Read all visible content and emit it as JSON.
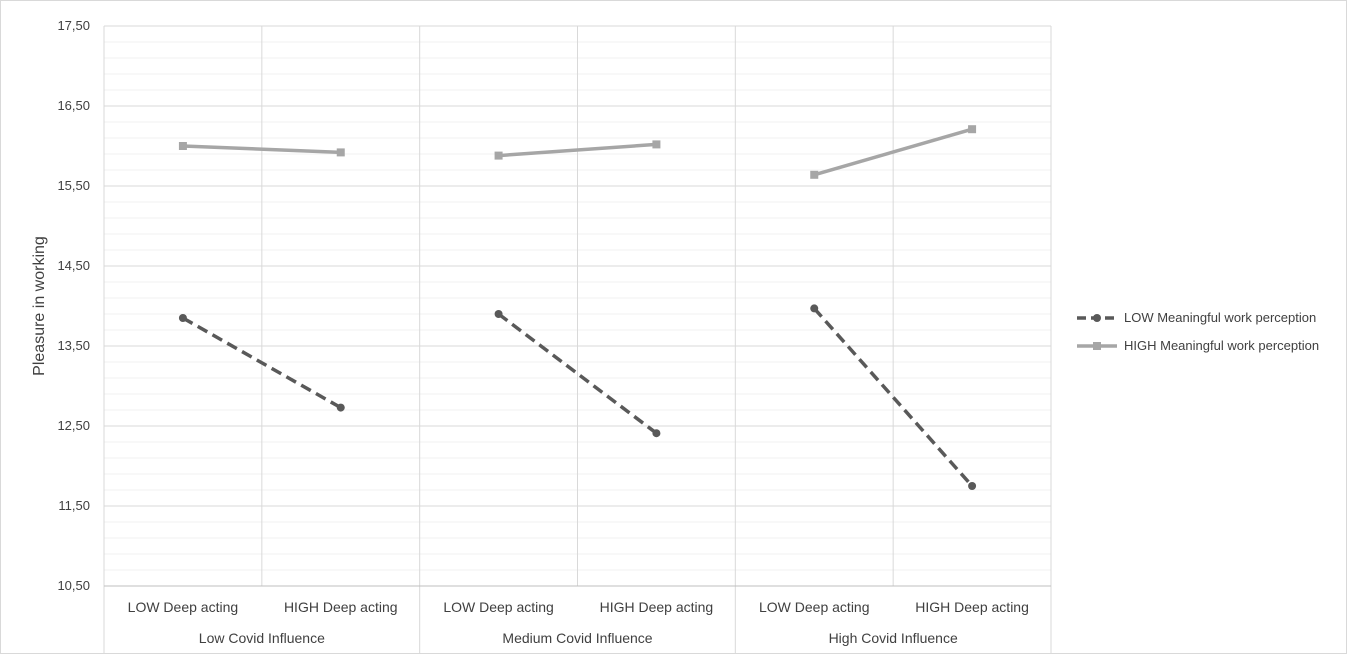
{
  "chart_data": {
    "type": "line",
    "title": "",
    "ylabel": "Pleasure in working",
    "xlabel": "",
    "ylim": [
      10.5,
      17.5
    ],
    "y_ticks": [
      "10,50",
      "11,50",
      "12,50",
      "13,50",
      "14,50",
      "15,50",
      "16,50",
      "17,50"
    ],
    "y_tick_values": [
      10.5,
      11.5,
      12.5,
      13.5,
      14.5,
      15.5,
      16.5,
      17.5
    ],
    "grid": true,
    "legend_position": "right",
    "groups": [
      {
        "label": "Low Covid Influence",
        "categories": [
          "LOW Deep acting",
          "HIGH Deep acting"
        ]
      },
      {
        "label": "Medium Covid Influence",
        "categories": [
          "LOW Deep acting",
          "HIGH Deep acting"
        ]
      },
      {
        "label": "High Covid Influence",
        "categories": [
          "LOW Deep acting",
          "HIGH Deep acting"
        ]
      }
    ],
    "series": [
      {
        "name": "LOW Meaningful work perception",
        "style": "dashed",
        "marker": "circle",
        "color": "#595959",
        "values": [
          [
            13.85,
            12.73
          ],
          [
            13.9,
            12.41
          ],
          [
            13.97,
            11.75
          ]
        ]
      },
      {
        "name": "HIGH Meaningful work perception",
        "style": "solid",
        "marker": "square",
        "color": "#a6a6a6",
        "values": [
          [
            16.0,
            15.92
          ],
          [
            15.88,
            16.02
          ],
          [
            15.64,
            16.21
          ]
        ]
      }
    ]
  }
}
